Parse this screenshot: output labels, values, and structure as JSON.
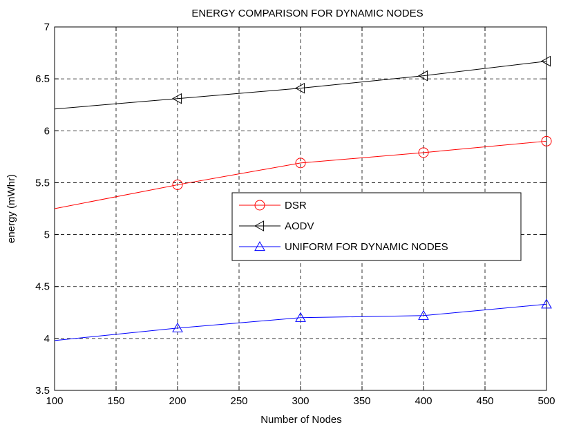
{
  "chart_data": {
    "type": "line",
    "title": "ENERGY COMPARISON FOR DYNAMIC NODES",
    "xlabel": "Number of Nodes",
    "ylabel": "energy (mWhr)",
    "xlim": [
      100,
      500
    ],
    "ylim": [
      3.5,
      7
    ],
    "xticks": [
      100,
      150,
      200,
      250,
      300,
      350,
      400,
      450,
      500
    ],
    "yticks": [
      3.5,
      4,
      4.5,
      5,
      5.5,
      6,
      6.5,
      7
    ],
    "grid": true,
    "legend_position": "center-right",
    "series": [
      {
        "name": "DSR",
        "color": "#ff0000",
        "marker": "circle",
        "x": [
          100,
          200,
          300,
          400,
          500
        ],
        "values": [
          5.25,
          5.48,
          5.69,
          5.79,
          5.9
        ],
        "marker_x": [
          200,
          300,
          400,
          500
        ]
      },
      {
        "name": "AODV",
        "color": "#000000",
        "marker": "triangle-left",
        "x": [
          100,
          200,
          300,
          400,
          500
        ],
        "values": [
          6.21,
          6.31,
          6.41,
          6.53,
          6.67
        ],
        "marker_x": [
          200,
          300,
          400,
          500
        ]
      },
      {
        "name": "UNIFORM FOR DYNAMIC NODES",
        "color": "#0000ff",
        "marker": "triangle-up",
        "x": [
          100,
          200,
          300,
          400,
          500
        ],
        "values": [
          3.98,
          4.1,
          4.2,
          4.22,
          4.33
        ],
        "marker_x": [
          200,
          300,
          400,
          500
        ]
      }
    ]
  }
}
